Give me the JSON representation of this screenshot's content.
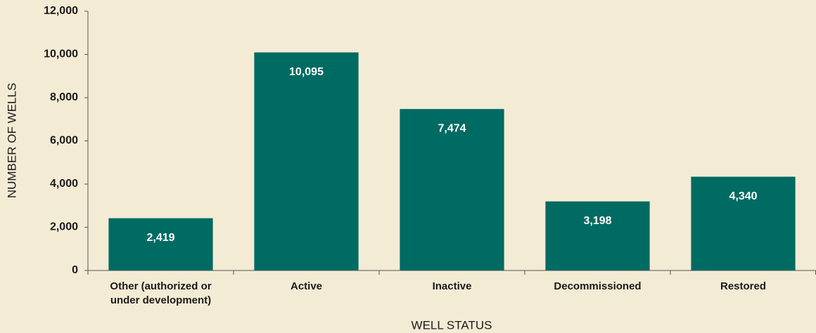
{
  "chart_data": {
    "type": "bar",
    "x_label": "WELL STATUS",
    "y_label": "NUMBER OF WELLS",
    "categories": [
      "Other (authorized or under development)",
      "Active",
      "Inactive",
      "Decommissioned",
      "Restored"
    ],
    "values": [
      2419,
      10095,
      7474,
      3198,
      4340
    ],
    "value_labels": [
      "2,419",
      "10,095",
      "7,474",
      "3,198",
      "4,340"
    ],
    "color": "#006b62",
    "ylim": [
      0,
      12000
    ],
    "yticks": [
      0,
      {
        "value": 2000,
        "label": "2,000"
      },
      {
        "value": 4000,
        "label": "4,000"
      },
      {
        "value": 6000,
        "label": "6,000"
      },
      {
        "value": 8000,
        "label": "8,000"
      },
      {
        "value": 10000,
        "label": "10,000"
      },
      {
        "value": 12000,
        "label": "12,000"
      }
    ],
    "grid": false
  }
}
